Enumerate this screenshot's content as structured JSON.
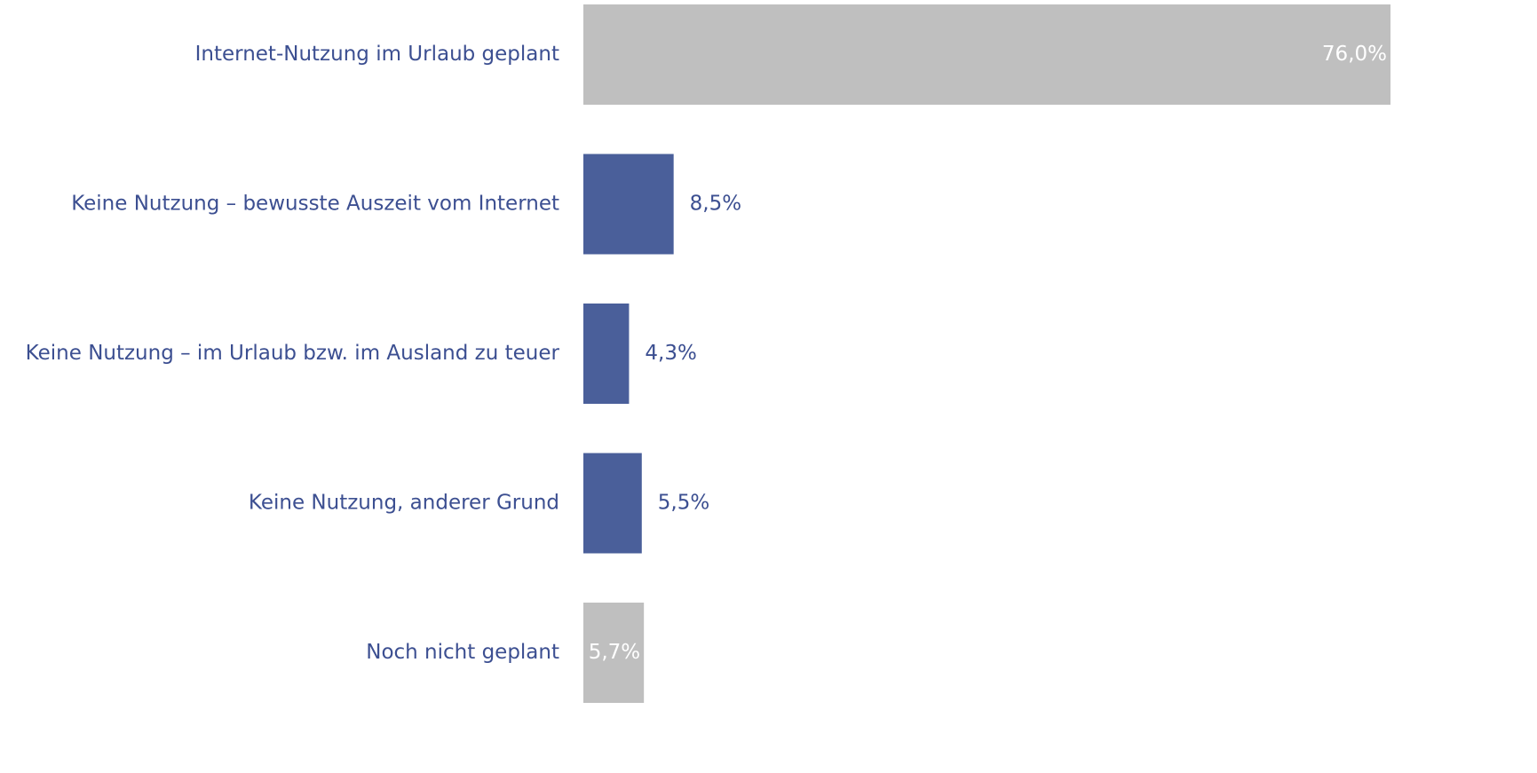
{
  "chart_data": {
    "type": "barh",
    "categories": [
      "Internet-Nutzung im Urlaub geplant",
      "Keine Nutzung – bewusste Auszeit vom Internet",
      "Keine Nutzung – im Urlaub bzw. im Ausland zu teuer",
      "Keine Nutzung, anderer Grund",
      "Noch nicht geplant"
    ],
    "values": [
      76.0,
      8.5,
      4.3,
      5.5,
      5.7
    ],
    "value_labels": [
      "76,0%",
      "8,5%",
      "4,3%",
      "5,5%",
      "5,7%"
    ],
    "colors": [
      "#bfbfbf",
      "#4a5f9a",
      "#4a5f9a",
      "#4a5f9a",
      "#bfbfbf"
    ],
    "value_label_positions": [
      "inside",
      "outside",
      "outside",
      "outside",
      "inside"
    ],
    "grid": false
  }
}
